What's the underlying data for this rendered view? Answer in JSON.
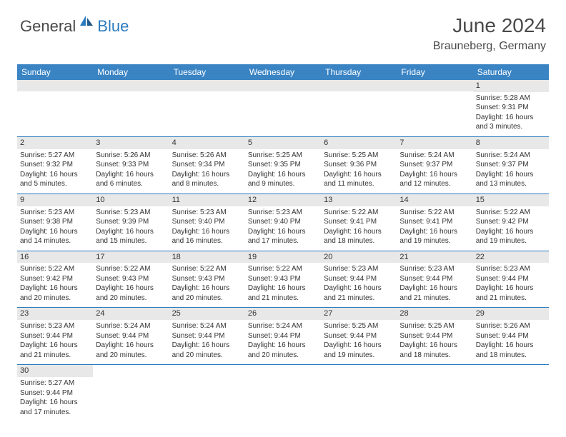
{
  "brand": {
    "text_general": "General",
    "text_blue": "Blue",
    "icon_color": "#2b7bbf"
  },
  "header": {
    "month_title": "June 2024",
    "location": "Brauneberg, Germany"
  },
  "colors": {
    "header_bg": "#3a84c4",
    "header_text": "#ffffff",
    "daynum_bg": "#e8e8e8",
    "border": "#2b7bbf",
    "body_text": "#333333"
  },
  "daynames": [
    "Sunday",
    "Monday",
    "Tuesday",
    "Wednesday",
    "Thursday",
    "Friday",
    "Saturday"
  ],
  "weeks": [
    [
      null,
      null,
      null,
      null,
      null,
      null,
      {
        "n": "1",
        "sr": "Sunrise: 5:28 AM",
        "ss": "Sunset: 9:31 PM",
        "dl": "Daylight: 16 hours and 3 minutes."
      }
    ],
    [
      {
        "n": "2",
        "sr": "Sunrise: 5:27 AM",
        "ss": "Sunset: 9:32 PM",
        "dl": "Daylight: 16 hours and 5 minutes."
      },
      {
        "n": "3",
        "sr": "Sunrise: 5:26 AM",
        "ss": "Sunset: 9:33 PM",
        "dl": "Daylight: 16 hours and 6 minutes."
      },
      {
        "n": "4",
        "sr": "Sunrise: 5:26 AM",
        "ss": "Sunset: 9:34 PM",
        "dl": "Daylight: 16 hours and 8 minutes."
      },
      {
        "n": "5",
        "sr": "Sunrise: 5:25 AM",
        "ss": "Sunset: 9:35 PM",
        "dl": "Daylight: 16 hours and 9 minutes."
      },
      {
        "n": "6",
        "sr": "Sunrise: 5:25 AM",
        "ss": "Sunset: 9:36 PM",
        "dl": "Daylight: 16 hours and 11 minutes."
      },
      {
        "n": "7",
        "sr": "Sunrise: 5:24 AM",
        "ss": "Sunset: 9:37 PM",
        "dl": "Daylight: 16 hours and 12 minutes."
      },
      {
        "n": "8",
        "sr": "Sunrise: 5:24 AM",
        "ss": "Sunset: 9:37 PM",
        "dl": "Daylight: 16 hours and 13 minutes."
      }
    ],
    [
      {
        "n": "9",
        "sr": "Sunrise: 5:23 AM",
        "ss": "Sunset: 9:38 PM",
        "dl": "Daylight: 16 hours and 14 minutes."
      },
      {
        "n": "10",
        "sr": "Sunrise: 5:23 AM",
        "ss": "Sunset: 9:39 PM",
        "dl": "Daylight: 16 hours and 15 minutes."
      },
      {
        "n": "11",
        "sr": "Sunrise: 5:23 AM",
        "ss": "Sunset: 9:40 PM",
        "dl": "Daylight: 16 hours and 16 minutes."
      },
      {
        "n": "12",
        "sr": "Sunrise: 5:23 AM",
        "ss": "Sunset: 9:40 PM",
        "dl": "Daylight: 16 hours and 17 minutes."
      },
      {
        "n": "13",
        "sr": "Sunrise: 5:22 AM",
        "ss": "Sunset: 9:41 PM",
        "dl": "Daylight: 16 hours and 18 minutes."
      },
      {
        "n": "14",
        "sr": "Sunrise: 5:22 AM",
        "ss": "Sunset: 9:41 PM",
        "dl": "Daylight: 16 hours and 19 minutes."
      },
      {
        "n": "15",
        "sr": "Sunrise: 5:22 AM",
        "ss": "Sunset: 9:42 PM",
        "dl": "Daylight: 16 hours and 19 minutes."
      }
    ],
    [
      {
        "n": "16",
        "sr": "Sunrise: 5:22 AM",
        "ss": "Sunset: 9:42 PM",
        "dl": "Daylight: 16 hours and 20 minutes."
      },
      {
        "n": "17",
        "sr": "Sunrise: 5:22 AM",
        "ss": "Sunset: 9:43 PM",
        "dl": "Daylight: 16 hours and 20 minutes."
      },
      {
        "n": "18",
        "sr": "Sunrise: 5:22 AM",
        "ss": "Sunset: 9:43 PM",
        "dl": "Daylight: 16 hours and 20 minutes."
      },
      {
        "n": "19",
        "sr": "Sunrise: 5:22 AM",
        "ss": "Sunset: 9:43 PM",
        "dl": "Daylight: 16 hours and 21 minutes."
      },
      {
        "n": "20",
        "sr": "Sunrise: 5:23 AM",
        "ss": "Sunset: 9:44 PM",
        "dl": "Daylight: 16 hours and 21 minutes."
      },
      {
        "n": "21",
        "sr": "Sunrise: 5:23 AM",
        "ss": "Sunset: 9:44 PM",
        "dl": "Daylight: 16 hours and 21 minutes."
      },
      {
        "n": "22",
        "sr": "Sunrise: 5:23 AM",
        "ss": "Sunset: 9:44 PM",
        "dl": "Daylight: 16 hours and 21 minutes."
      }
    ],
    [
      {
        "n": "23",
        "sr": "Sunrise: 5:23 AM",
        "ss": "Sunset: 9:44 PM",
        "dl": "Daylight: 16 hours and 21 minutes."
      },
      {
        "n": "24",
        "sr": "Sunrise: 5:24 AM",
        "ss": "Sunset: 9:44 PM",
        "dl": "Daylight: 16 hours and 20 minutes."
      },
      {
        "n": "25",
        "sr": "Sunrise: 5:24 AM",
        "ss": "Sunset: 9:44 PM",
        "dl": "Daylight: 16 hours and 20 minutes."
      },
      {
        "n": "26",
        "sr": "Sunrise: 5:24 AM",
        "ss": "Sunset: 9:44 PM",
        "dl": "Daylight: 16 hours and 20 minutes."
      },
      {
        "n": "27",
        "sr": "Sunrise: 5:25 AM",
        "ss": "Sunset: 9:44 PM",
        "dl": "Daylight: 16 hours and 19 minutes."
      },
      {
        "n": "28",
        "sr": "Sunrise: 5:25 AM",
        "ss": "Sunset: 9:44 PM",
        "dl": "Daylight: 16 hours and 18 minutes."
      },
      {
        "n": "29",
        "sr": "Sunrise: 5:26 AM",
        "ss": "Sunset: 9:44 PM",
        "dl": "Daylight: 16 hours and 18 minutes."
      }
    ],
    [
      {
        "n": "30",
        "sr": "Sunrise: 5:27 AM",
        "ss": "Sunset: 9:44 PM",
        "dl": "Daylight: 16 hours and 17 minutes."
      },
      null,
      null,
      null,
      null,
      null,
      null
    ]
  ]
}
